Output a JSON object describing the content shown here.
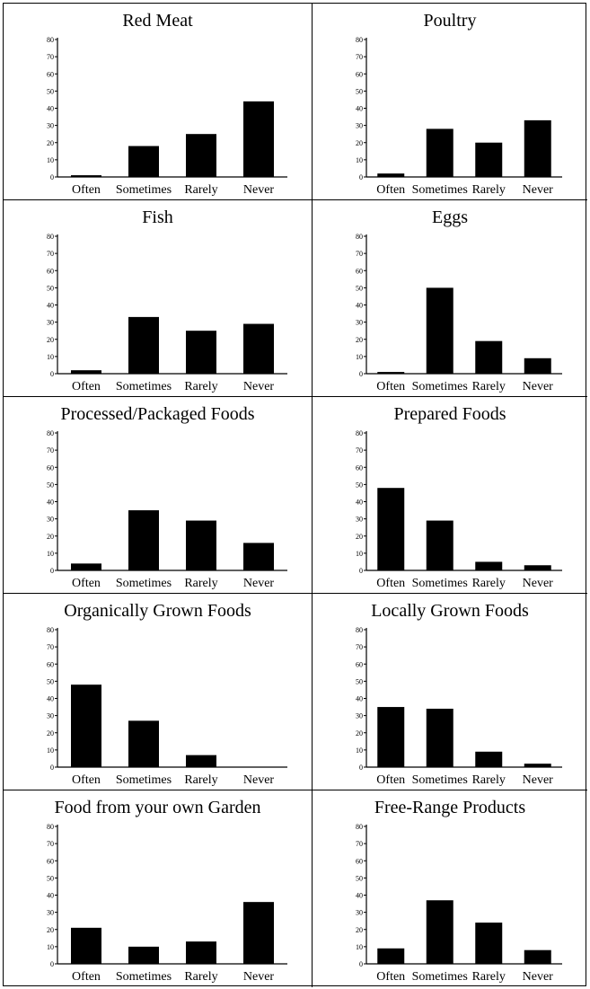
{
  "chart_data": [
    {
      "type": "bar",
      "title": "Red Meat",
      "categories": [
        "Often",
        "Sometimes",
        "Rarely",
        "Never"
      ],
      "values": [
        1,
        18,
        25,
        44
      ],
      "ylim": [
        0,
        80
      ],
      "yticks": [
        0,
        10,
        20,
        30,
        40,
        50,
        60,
        70,
        80
      ]
    },
    {
      "type": "bar",
      "title": "Poultry",
      "categories": [
        "Often",
        "Sometimes",
        "Rarely",
        "Never"
      ],
      "values": [
        2,
        28,
        20,
        33
      ],
      "ylim": [
        0,
        80
      ],
      "yticks": [
        0,
        10,
        20,
        30,
        40,
        50,
        60,
        70,
        80
      ]
    },
    {
      "type": "bar",
      "title": "Fish",
      "categories": [
        "Often",
        "Sometimes",
        "Rarely",
        "Never"
      ],
      "values": [
        2,
        33,
        25,
        29
      ],
      "ylim": [
        0,
        80
      ],
      "yticks": [
        0,
        10,
        20,
        30,
        40,
        50,
        60,
        70,
        80
      ]
    },
    {
      "type": "bar",
      "title": "Eggs",
      "categories": [
        "Often",
        "Sometimes",
        "Rarely",
        "Never"
      ],
      "values": [
        1,
        50,
        19,
        9
      ],
      "ylim": [
        0,
        80
      ],
      "yticks": [
        0,
        10,
        20,
        30,
        40,
        50,
        60,
        70,
        80
      ]
    },
    {
      "type": "bar",
      "title": "Processed/Packaged Foods",
      "categories": [
        "Often",
        "Sometimes",
        "Rarely",
        "Never"
      ],
      "values": [
        4,
        35,
        29,
        16
      ],
      "ylim": [
        0,
        80
      ],
      "yticks": [
        0,
        10,
        20,
        30,
        40,
        50,
        60,
        70,
        80
      ]
    },
    {
      "type": "bar",
      "title": "Prepared Foods",
      "categories": [
        "Often",
        "Sometimes",
        "Rarely",
        "Never"
      ],
      "values": [
        48,
        29,
        5,
        3
      ],
      "ylim": [
        0,
        80
      ],
      "yticks": [
        0,
        10,
        20,
        30,
        40,
        50,
        60,
        70,
        80
      ]
    },
    {
      "type": "bar",
      "title": "Organically Grown Foods",
      "categories": [
        "Often",
        "Sometimes",
        "Rarely",
        "Never"
      ],
      "values": [
        48,
        27,
        7,
        0
      ],
      "ylim": [
        0,
        80
      ],
      "yticks": [
        0,
        10,
        20,
        30,
        40,
        50,
        60,
        70,
        80
      ]
    },
    {
      "type": "bar",
      "title": "Locally Grown Foods",
      "categories": [
        "Often",
        "Sometimes",
        "Rarely",
        "Never"
      ],
      "values": [
        35,
        34,
        9,
        2
      ],
      "ylim": [
        0,
        80
      ],
      "yticks": [
        0,
        10,
        20,
        30,
        40,
        50,
        60,
        70,
        80
      ]
    },
    {
      "type": "bar",
      "title": "Food from your own Garden",
      "categories": [
        "Often",
        "Sometimes",
        "Rarely",
        "Never"
      ],
      "values": [
        21,
        10,
        13,
        36
      ],
      "ylim": [
        0,
        80
      ],
      "yticks": [
        0,
        10,
        20,
        30,
        40,
        50,
        60,
        70,
        80
      ]
    },
    {
      "type": "bar",
      "title": "Free-Range Products",
      "categories": [
        "Often",
        "Sometimes",
        "Rarely",
        "Never"
      ],
      "values": [
        9,
        37,
        24,
        8
      ],
      "ylim": [
        0,
        80
      ],
      "yticks": [
        0,
        10,
        20,
        30,
        40,
        50,
        60,
        70,
        80
      ]
    }
  ]
}
